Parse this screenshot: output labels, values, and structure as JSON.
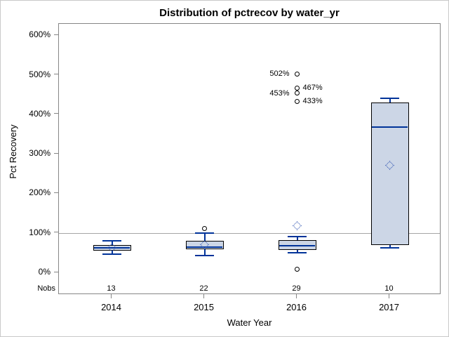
{
  "chart_data": {
    "type": "boxplot",
    "title": "Distribution of pctrecov by water_yr",
    "xlabel": "Water Year",
    "ylabel": "Pct Recovery",
    "ylim": [
      0,
      600
    ],
    "grid": false,
    "reference_line_value": 100,
    "yticks": [
      {
        "value": 0,
        "label": "0%"
      },
      {
        "value": 100,
        "label": "100%"
      },
      {
        "value": 200,
        "label": "200%"
      },
      {
        "value": 300,
        "label": "300%"
      },
      {
        "value": 400,
        "label": "400%"
      },
      {
        "value": 500,
        "label": "500%"
      },
      {
        "value": 600,
        "label": "600%"
      }
    ],
    "categories": [
      "2014",
      "2015",
      "2016",
      "2017"
    ],
    "nobs_label": "Nobs",
    "nobs": [
      "13",
      "22",
      "29",
      "10"
    ],
    "series": [
      {
        "category": "2014",
        "whisker_low": 46,
        "q1": 56,
        "median": 62,
        "q3": 69,
        "whisker_high": 80,
        "mean": 63,
        "outliers": []
      },
      {
        "category": "2015",
        "whisker_low": 43,
        "q1": 59,
        "median": 64,
        "q3": 80,
        "whisker_high": 100,
        "mean": 70,
        "outliers": [
          {
            "value": 112
          }
        ]
      },
      {
        "category": "2016",
        "whisker_low": 50,
        "q1": 57,
        "median": 68,
        "q3": 81,
        "whisker_high": 91,
        "mean": 119,
        "outliers": [
          {
            "value": 8
          },
          {
            "value": 433,
            "label": "433%",
            "label_side": "right"
          },
          {
            "value": 453,
            "label": "453%",
            "label_side": "left"
          },
          {
            "value": 467,
            "label": "467%",
            "label_side": "right"
          },
          {
            "value": 502,
            "label": "502%",
            "label_side": "left"
          }
        ]
      },
      {
        "category": "2017",
        "whisker_low": 63,
        "q1": 70,
        "median": 367,
        "q3": 430,
        "whisker_high": 440,
        "mean": 271,
        "outliers": []
      }
    ],
    "colors": {
      "box_fill": "#ccd6e6",
      "box_border": "#000000",
      "median": "#003399",
      "whisker": "#003399",
      "mean_marker": "#2a4faf",
      "outlier_stroke": "#000000",
      "reference_line": "#a6a6a6",
      "frame": "#868686",
      "text": "#000000"
    }
  }
}
